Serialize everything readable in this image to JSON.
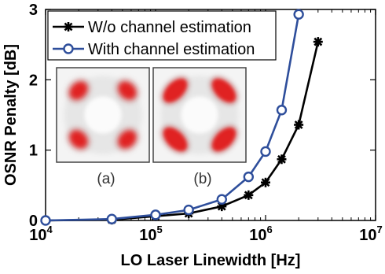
{
  "chart_data": {
    "type": "line",
    "xlabel": "LO Laser Linewidth [Hz]",
    "ylabel": "OSNR Penalty [dB]",
    "xscale": "log",
    "xlim": [
      10000,
      10000000
    ],
    "ylim": [
      0,
      3
    ],
    "x_ticks": [
      {
        "base": "10",
        "exp": "4",
        "value": 10000
      },
      {
        "base": "10",
        "exp": "5",
        "value": 100000
      },
      {
        "base": "10",
        "exp": "6",
        "value": 1000000
      },
      {
        "base": "10",
        "exp": "7",
        "value": 10000000
      }
    ],
    "y_ticks": [
      {
        "label": "0",
        "value": 0
      },
      {
        "label": "1",
        "value": 1
      },
      {
        "label": "2",
        "value": 2
      },
      {
        "label": "3",
        "value": 3
      }
    ],
    "grid": false,
    "legend_position": "top-left",
    "series": [
      {
        "name": "W/o channel estimation",
        "color": "#000000",
        "marker": "star",
        "points": [
          {
            "x": 10000,
            "y": 0.0
          },
          {
            "x": 40000,
            "y": 0.01
          },
          {
            "x": 100000,
            "y": 0.06
          },
          {
            "x": 200000,
            "y": 0.1
          },
          {
            "x": 400000,
            "y": 0.2
          },
          {
            "x": 700000,
            "y": 0.36
          },
          {
            "x": 1000000,
            "y": 0.54
          },
          {
            "x": 1400000,
            "y": 0.87
          },
          {
            "x": 2000000,
            "y": 1.36
          },
          {
            "x": 3000000,
            "y": 2.54
          }
        ]
      },
      {
        "name": "With channel estimation",
        "color": "#2e4e9b",
        "marker": "circle",
        "points": [
          {
            "x": 10000,
            "y": 0.0
          },
          {
            "x": 40000,
            "y": 0.02
          },
          {
            "x": 100000,
            "y": 0.08
          },
          {
            "x": 200000,
            "y": 0.15
          },
          {
            "x": 400000,
            "y": 0.3
          },
          {
            "x": 700000,
            "y": 0.62
          },
          {
            "x": 1000000,
            "y": 0.98
          },
          {
            "x": 1400000,
            "y": 1.57
          },
          {
            "x": 2000000,
            "y": 2.93
          }
        ]
      }
    ],
    "insets": [
      {
        "label": "(a)",
        "image": "constellation-diagram",
        "cluster_color": "#e02020"
      },
      {
        "label": "(b)",
        "image": "constellation-diagram",
        "cluster_color": "#e02020"
      }
    ]
  }
}
